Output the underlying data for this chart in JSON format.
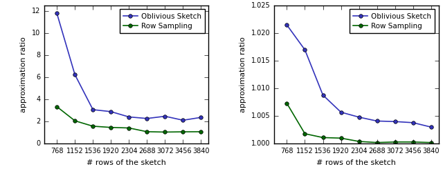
{
  "x_ticks": [
    768,
    1152,
    1536,
    1920,
    2304,
    2688,
    3072,
    3456,
    3840
  ],
  "left": {
    "oblivious_sketch": [
      11.8,
      6.25,
      3.08,
      2.9,
      2.42,
      2.28,
      2.48,
      2.12,
      2.38
    ],
    "row_sampling": [
      3.35,
      2.07,
      1.58,
      1.47,
      1.42,
      1.08,
      1.05,
      1.07,
      1.08
    ],
    "ylabel": "approximation ratio",
    "xlabel": "# rows of the sketch",
    "ylim": [
      0,
      12.5
    ],
    "yticks": [
      0,
      2,
      4,
      6,
      8,
      10,
      12
    ]
  },
  "right": {
    "oblivious_sketch": [
      1.0215,
      1.017,
      1.0088,
      1.0057,
      1.0048,
      1.0041,
      1.004,
      1.0038,
      1.003
    ],
    "row_sampling": [
      1.0073,
      1.0018,
      1.0011,
      1.001,
      1.0004,
      1.0002,
      1.0003,
      1.0003,
      1.0002
    ],
    "ylabel": "approximation ratio",
    "xlabel": "# rows of the sketch",
    "ylim": [
      1.0,
      1.025
    ],
    "yticks": [
      1.0,
      1.005,
      1.01,
      1.015,
      1.02,
      1.025
    ]
  },
  "oblivious_color": "#3333bb",
  "row_color": "#006600",
  "legend_oblivious": "Oblivious Sketch",
  "legend_row": "Row Sampling"
}
